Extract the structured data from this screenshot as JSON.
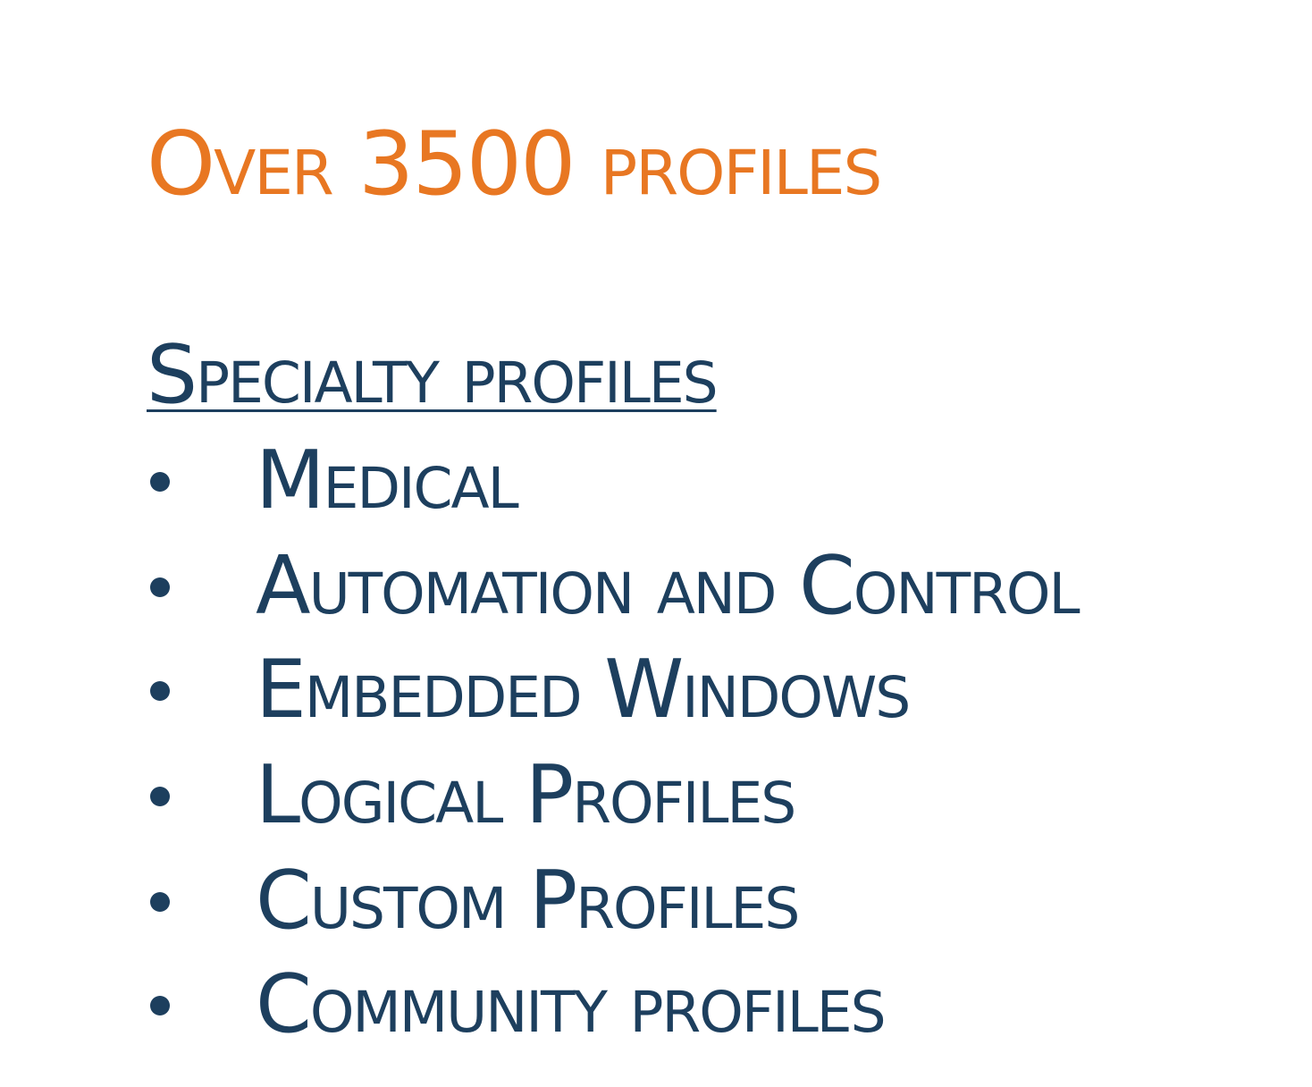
{
  "slide": {
    "title": "Over 3500 profiles",
    "subtitle": "Specialty profiles",
    "bullets": [
      "Medical",
      "Automation and Control",
      "Embedded Windows",
      "Logical Profiles",
      "Custom Profiles",
      "Community profiles"
    ],
    "colors": {
      "title": "#e87722",
      "text": "#1d3f5e",
      "background": "#ffffff"
    }
  }
}
